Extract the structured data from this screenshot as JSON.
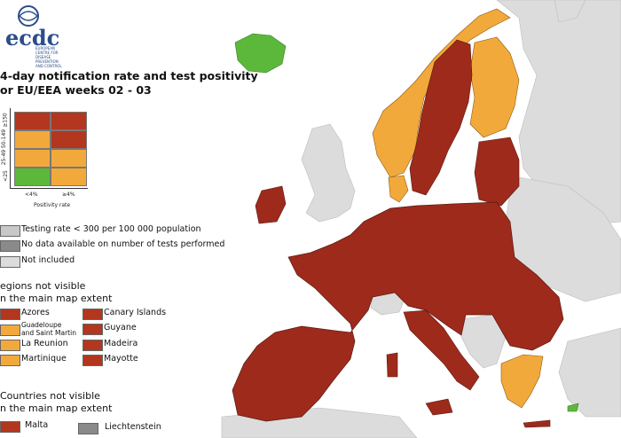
{
  "colors": {
    "red": "#9e2a1c",
    "dark_red": "#b3361f",
    "orange": "#f2a93b",
    "green": "#5cb83a",
    "light_grey": "#dcdcdc",
    "mid_grey": "#c8c8c8",
    "dark_grey": "#8a8a8a",
    "sea": "#ffffff",
    "border": "#5a1a10"
  },
  "logo": {
    "name": "ecdc",
    "subtitle": "EUROPEAN CENTRE FOR DISEASE PREVENTION AND CONTROL"
  },
  "title_line1": "4-day notification rate and test positivity",
  "title_line2": "or EU/EEA weeks 02 - 03",
  "matrix": {
    "y_labels": [
      "≥150",
      "50-149",
      "25-49",
      "<25"
    ],
    "x_labels": [
      "<4%",
      "≥4%"
    ],
    "x_axis_title": "Positivity rate",
    "cells": [
      [
        "red",
        "red"
      ],
      [
        "orange",
        "red"
      ],
      [
        "orange",
        "orange"
      ],
      [
        "green",
        "orange"
      ]
    ]
  },
  "legend": [
    {
      "label": "Testing rate < 300 per 100 000 population",
      "color": "mid_grey"
    },
    {
      "label": "No data available on number of tests performed",
      "color": "dark_grey"
    },
    {
      "label": "Not included",
      "color": "light_grey"
    }
  ],
  "regions_title_1": "egions not visible",
  "regions_title_2": "n the main map extent",
  "regions": [
    {
      "label": "Azores",
      "color": "red"
    },
    {
      "label": "Canary Islands",
      "color": "red"
    },
    {
      "label": "Guadeloupe\nand Saint Martin",
      "color": "orange"
    },
    {
      "label": "Guyane",
      "color": "red"
    },
    {
      "label": "La Reunion",
      "color": "orange"
    },
    {
      "label": "Madeira",
      "color": "red"
    },
    {
      "label": "Martinique",
      "color": "orange"
    },
    {
      "label": "Mayotte",
      "color": "red"
    }
  ],
  "countries_title_1": "Countries not visible",
  "countries_title_2": "n the main map extent",
  "countries": [
    {
      "label": "Malta",
      "color": "red"
    },
    {
      "label": "Liechtenstein",
      "color": "dark_grey"
    }
  ]
}
